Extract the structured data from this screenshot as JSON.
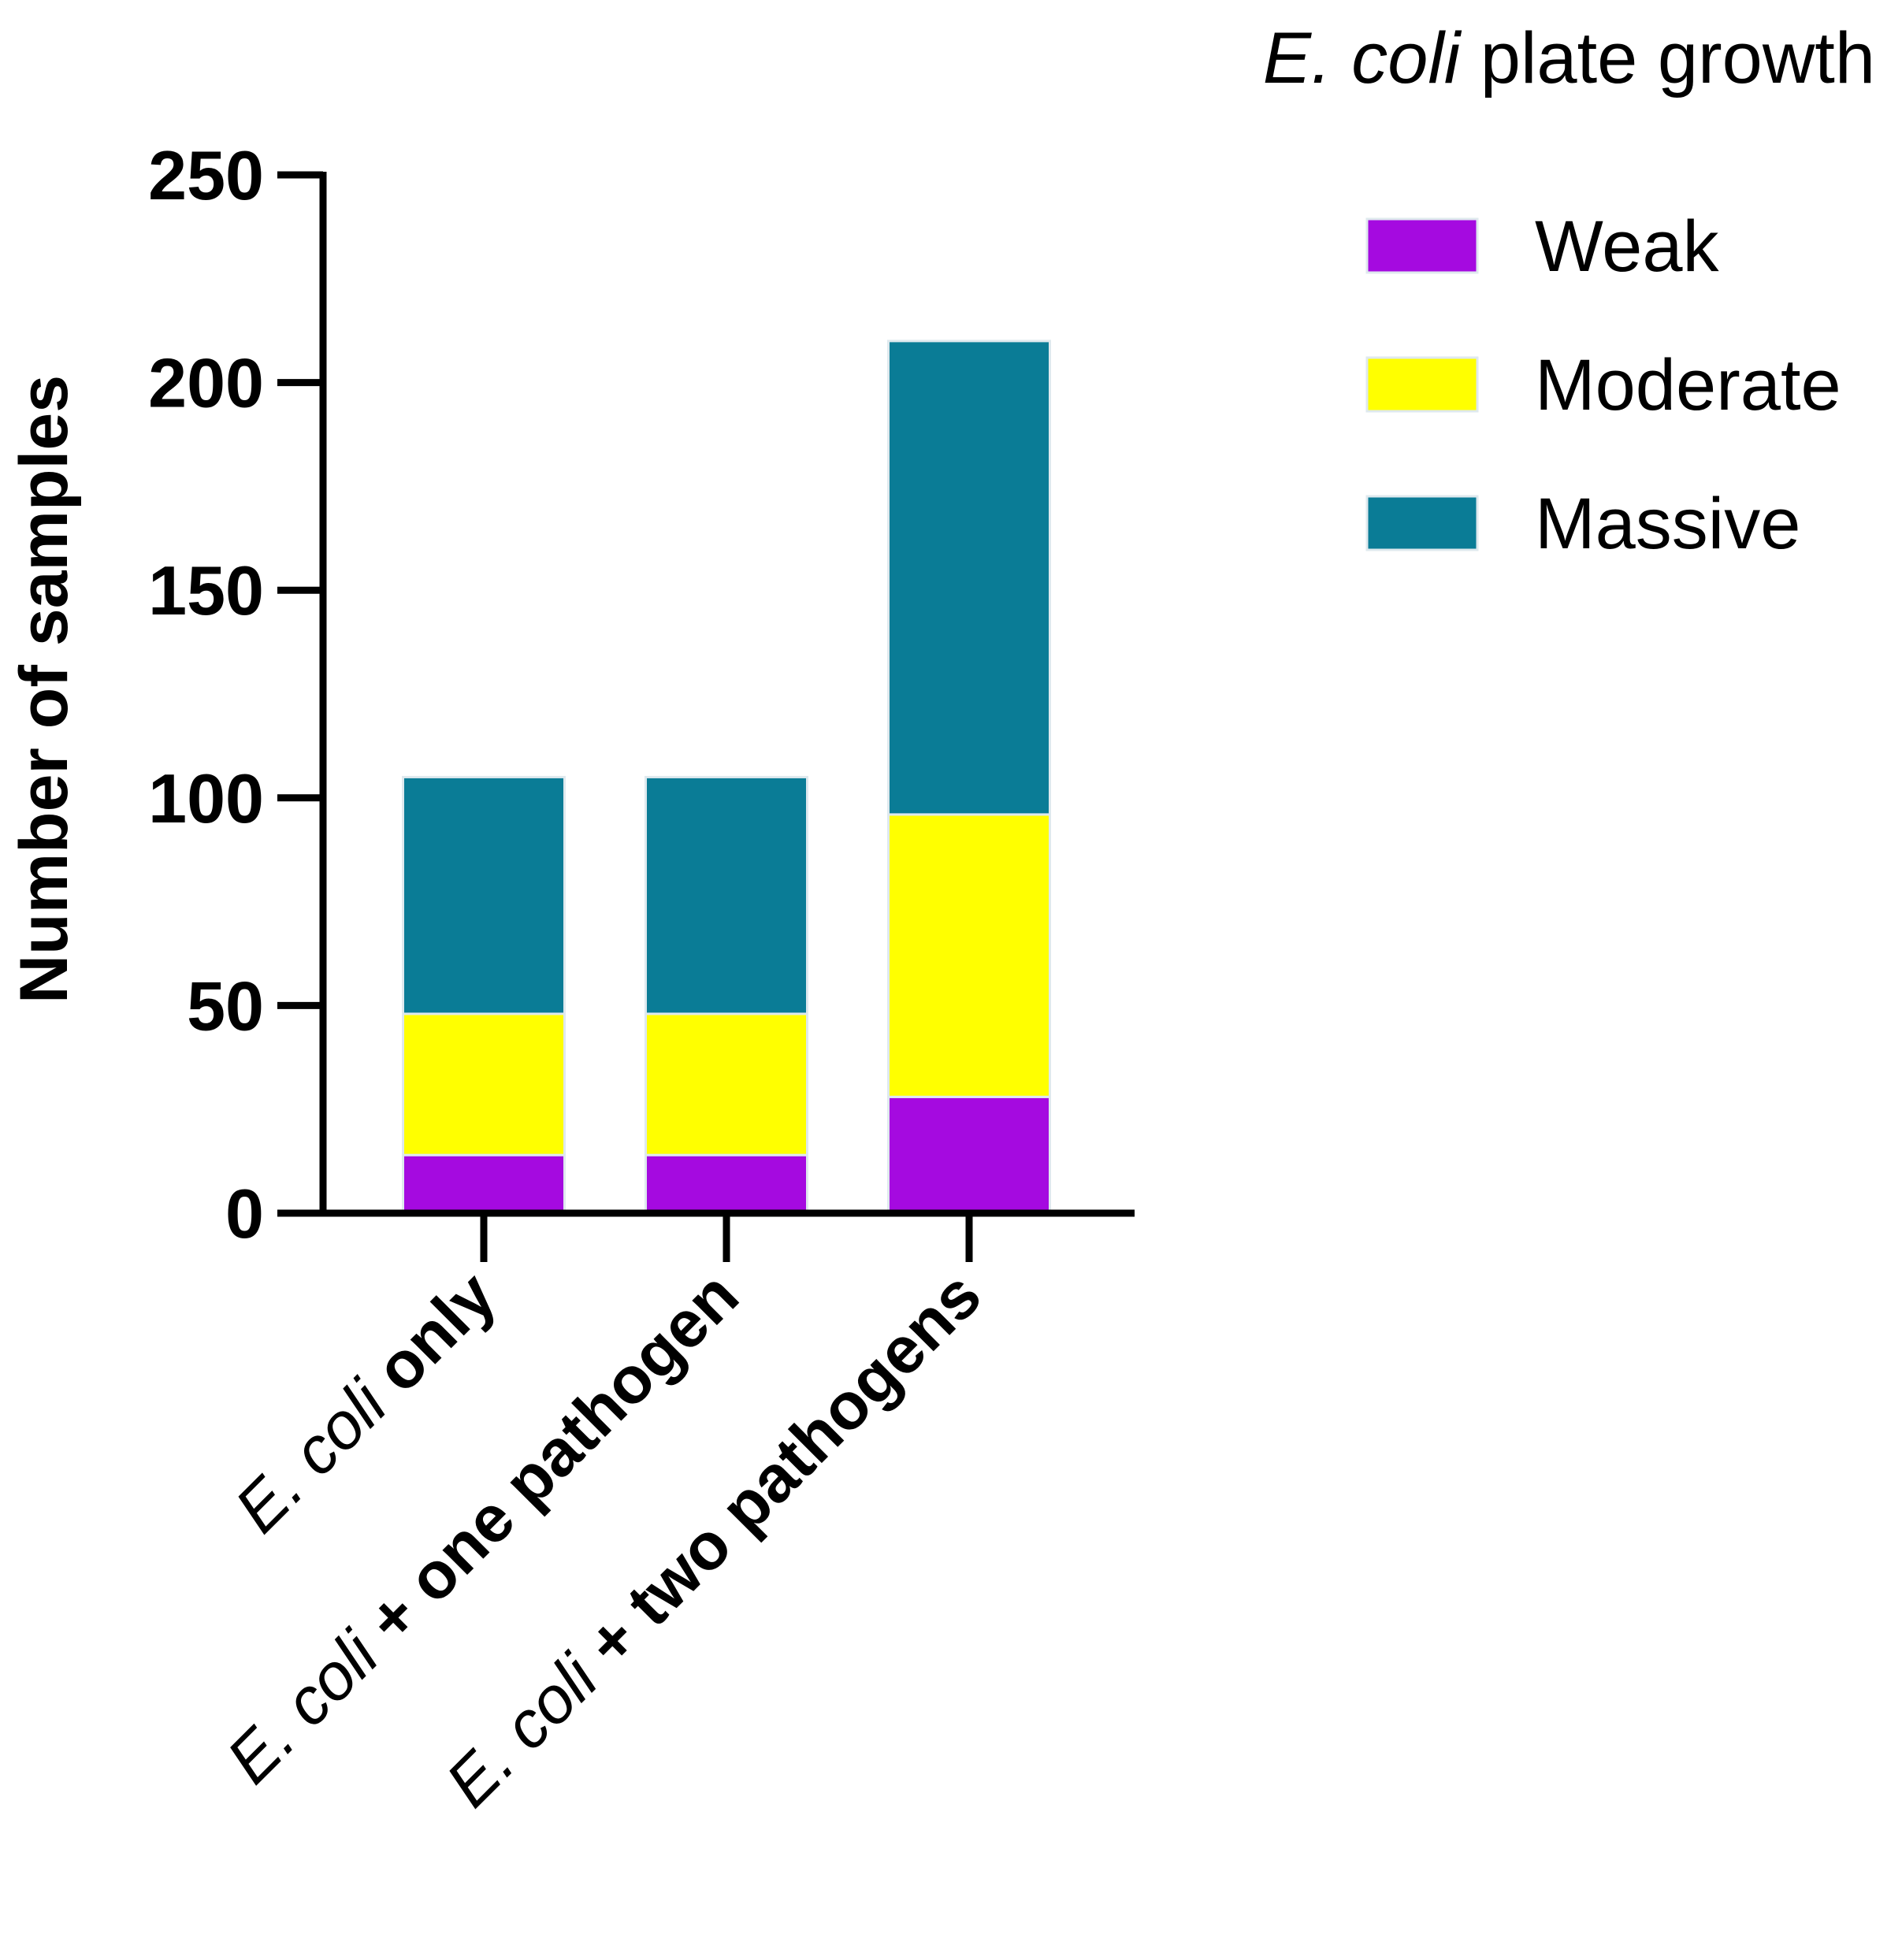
{
  "chart_data": {
    "type": "bar",
    "stacked": true,
    "categories": [
      {
        "italic": "E. coli",
        "rest": " only"
      },
      {
        "italic": "E. coli",
        "rest": " + one pathogen"
      },
      {
        "italic": "E. coli",
        "rest": " + two pathogens"
      }
    ],
    "series": [
      {
        "name": "Weak",
        "color": "#a50ae0",
        "values": [
          14,
          14,
          28
        ]
      },
      {
        "name": "Moderate",
        "color": "#ffff00",
        "values": [
          34,
          34,
          68
        ]
      },
      {
        "name": "Massive",
        "color": "#0a7c96",
        "values": [
          57,
          57,
          114
        ]
      }
    ],
    "legend_title": {
      "italic": "E. coli",
      "rest": " plate growth"
    },
    "ylabel": "Number of samples",
    "xlabel": "",
    "ylim": [
      0,
      250
    ],
    "yticks": [
      0,
      50,
      100,
      150,
      200,
      250
    ],
    "legend_position": "top-right",
    "grid": false
  }
}
